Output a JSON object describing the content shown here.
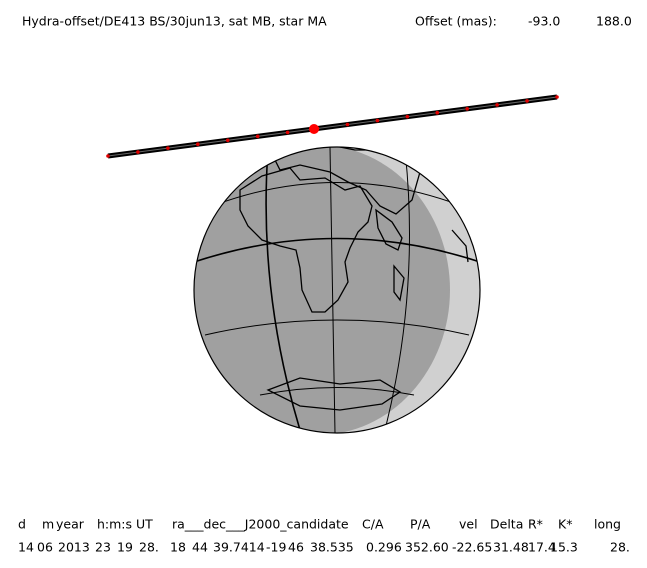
{
  "header": {
    "title": "Hydra-offset/DE413 BS/30jun13, sat MB, star MA",
    "offset_label": "Offset (mas):",
    "offset_values": [
      "-93.0",
      "188.0"
    ]
  },
  "table": {
    "columns": [
      "d",
      "m",
      "year",
      "h:m:s UT",
      "ra___dec___J2000_candidate",
      "C/A",
      "P/A",
      "vel",
      "Delta",
      "R*",
      "K*",
      "long"
    ],
    "rows": [
      [
        "14",
        "06",
        "2013",
        "23",
        "19",
        "28.",
        "18",
        "44",
        "39.7414",
        "-19",
        "46",
        "38.535",
        "0.296",
        "352.60",
        "-22.65",
        "31.48",
        "17.4",
        "15.3",
        "28."
      ]
    ]
  }
}
